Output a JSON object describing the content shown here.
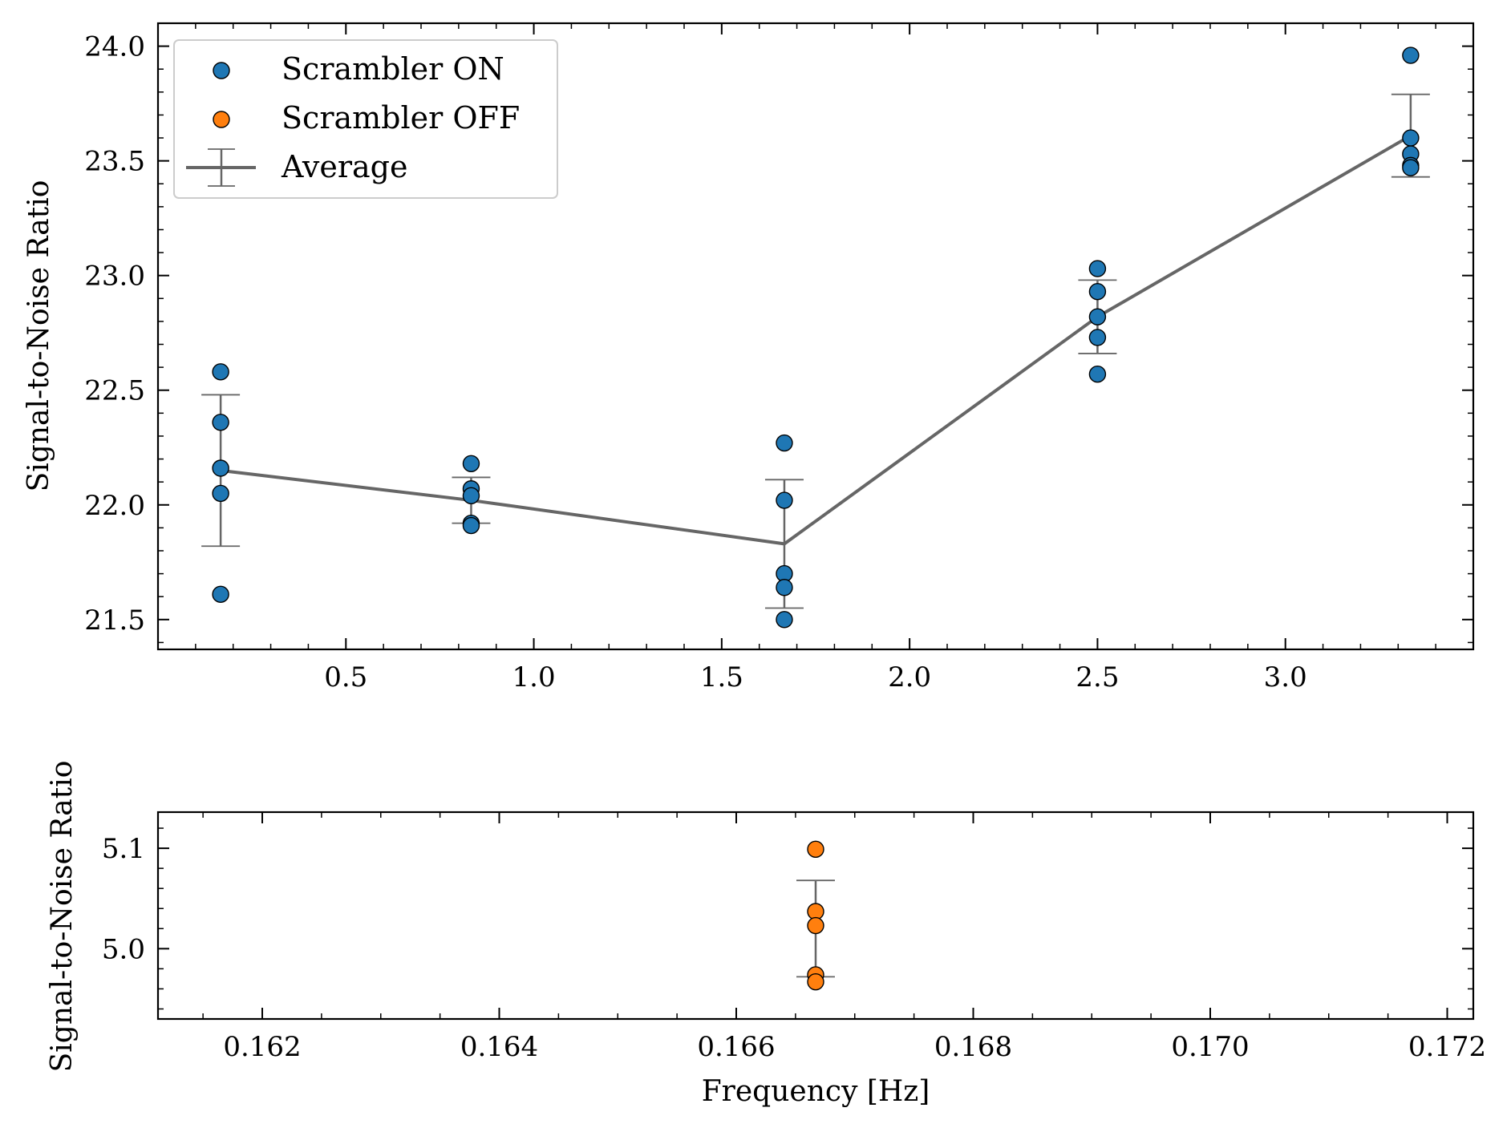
{
  "chart_data": [
    {
      "type": "scatter",
      "xlabel": "",
      "ylabel": "Signal-to-Noise Ratio",
      "xlim": [
        0.0,
        3.5
      ],
      "ylim": [
        21.37,
        24.1
      ],
      "xticks": [
        0.5,
        1.0,
        1.5,
        2.0,
        2.5,
        3.0
      ],
      "xtick_labels": [
        "0.5",
        "1.0",
        "1.5",
        "2.0",
        "2.5",
        "3.0"
      ],
      "yticks": [
        21.5,
        22.0,
        22.5,
        23.0,
        23.5,
        24.0
      ],
      "ytick_labels": [
        "21.5",
        "22.0",
        "22.5",
        "23.0",
        "23.5",
        "24.0"
      ],
      "legend_position": "top-left",
      "grid": false,
      "series": [
        {
          "name": "Scrambler ON",
          "kind": "scatter",
          "color": "#1f77b4",
          "points": [
            {
              "x": 0.1667,
              "y": 22.58
            },
            {
              "x": 0.1667,
              "y": 22.36
            },
            {
              "x": 0.1667,
              "y": 22.16
            },
            {
              "x": 0.1667,
              "y": 22.05
            },
            {
              "x": 0.1667,
              "y": 21.61
            },
            {
              "x": 0.8333,
              "y": 22.18
            },
            {
              "x": 0.8333,
              "y": 22.07
            },
            {
              "x": 0.8333,
              "y": 22.04
            },
            {
              "x": 0.8333,
              "y": 21.92
            },
            {
              "x": 0.8333,
              "y": 21.91
            },
            {
              "x": 1.6667,
              "y": 22.27
            },
            {
              "x": 1.6667,
              "y": 22.02
            },
            {
              "x": 1.6667,
              "y": 21.7
            },
            {
              "x": 1.6667,
              "y": 21.64
            },
            {
              "x": 1.6667,
              "y": 21.5
            },
            {
              "x": 2.5,
              "y": 23.03
            },
            {
              "x": 2.5,
              "y": 22.93
            },
            {
              "x": 2.5,
              "y": 22.82
            },
            {
              "x": 2.5,
              "y": 22.73
            },
            {
              "x": 2.5,
              "y": 22.57
            },
            {
              "x": 3.3333,
              "y": 23.96
            },
            {
              "x": 3.3333,
              "y": 23.6
            },
            {
              "x": 3.3333,
              "y": 23.53
            },
            {
              "x": 3.3333,
              "y": 23.48
            },
            {
              "x": 3.3333,
              "y": 23.47
            }
          ]
        },
        {
          "name": "Scrambler OFF",
          "kind": "scatter",
          "color": "#ff7f0e",
          "points": []
        },
        {
          "name": "Average",
          "kind": "line-errorbar",
          "color": "#666666",
          "x": [
            0.1667,
            0.8333,
            1.6667,
            2.5,
            3.3333
          ],
          "y": [
            22.15,
            22.02,
            21.83,
            22.82,
            23.61
          ],
          "yerr": [
            0.33,
            0.1,
            0.28,
            0.16,
            0.18
          ]
        }
      ]
    },
    {
      "type": "scatter",
      "xlabel": "Frequency [Hz]",
      "ylabel": "Signal-to-Noise Ratio",
      "xlim": [
        0.16112,
        0.17222
      ],
      "ylim": [
        4.93,
        5.136
      ],
      "xticks": [
        0.162,
        0.164,
        0.166,
        0.168,
        0.17,
        0.172
      ],
      "xtick_labels": [
        "0.162",
        "0.164",
        "0.166",
        "0.168",
        "0.170",
        "0.172"
      ],
      "yticks": [
        5.0,
        5.1
      ],
      "ytick_labels": [
        "5.0",
        "5.1"
      ],
      "grid": false,
      "series": [
        {
          "name": "Scrambler OFF",
          "kind": "scatter",
          "color": "#ff7f0e",
          "points": [
            {
              "x": 0.16667,
              "y": 5.099
            },
            {
              "x": 0.16667,
              "y": 5.037
            },
            {
              "x": 0.16667,
              "y": 5.023
            },
            {
              "x": 0.16667,
              "y": 4.974
            },
            {
              "x": 0.16667,
              "y": 4.967
            }
          ]
        },
        {
          "name": "Average",
          "kind": "line-errorbar",
          "color": "#666666",
          "x": [
            0.16667
          ],
          "y": [
            5.02
          ],
          "yerr": [
            0.048
          ]
        }
      ]
    }
  ]
}
